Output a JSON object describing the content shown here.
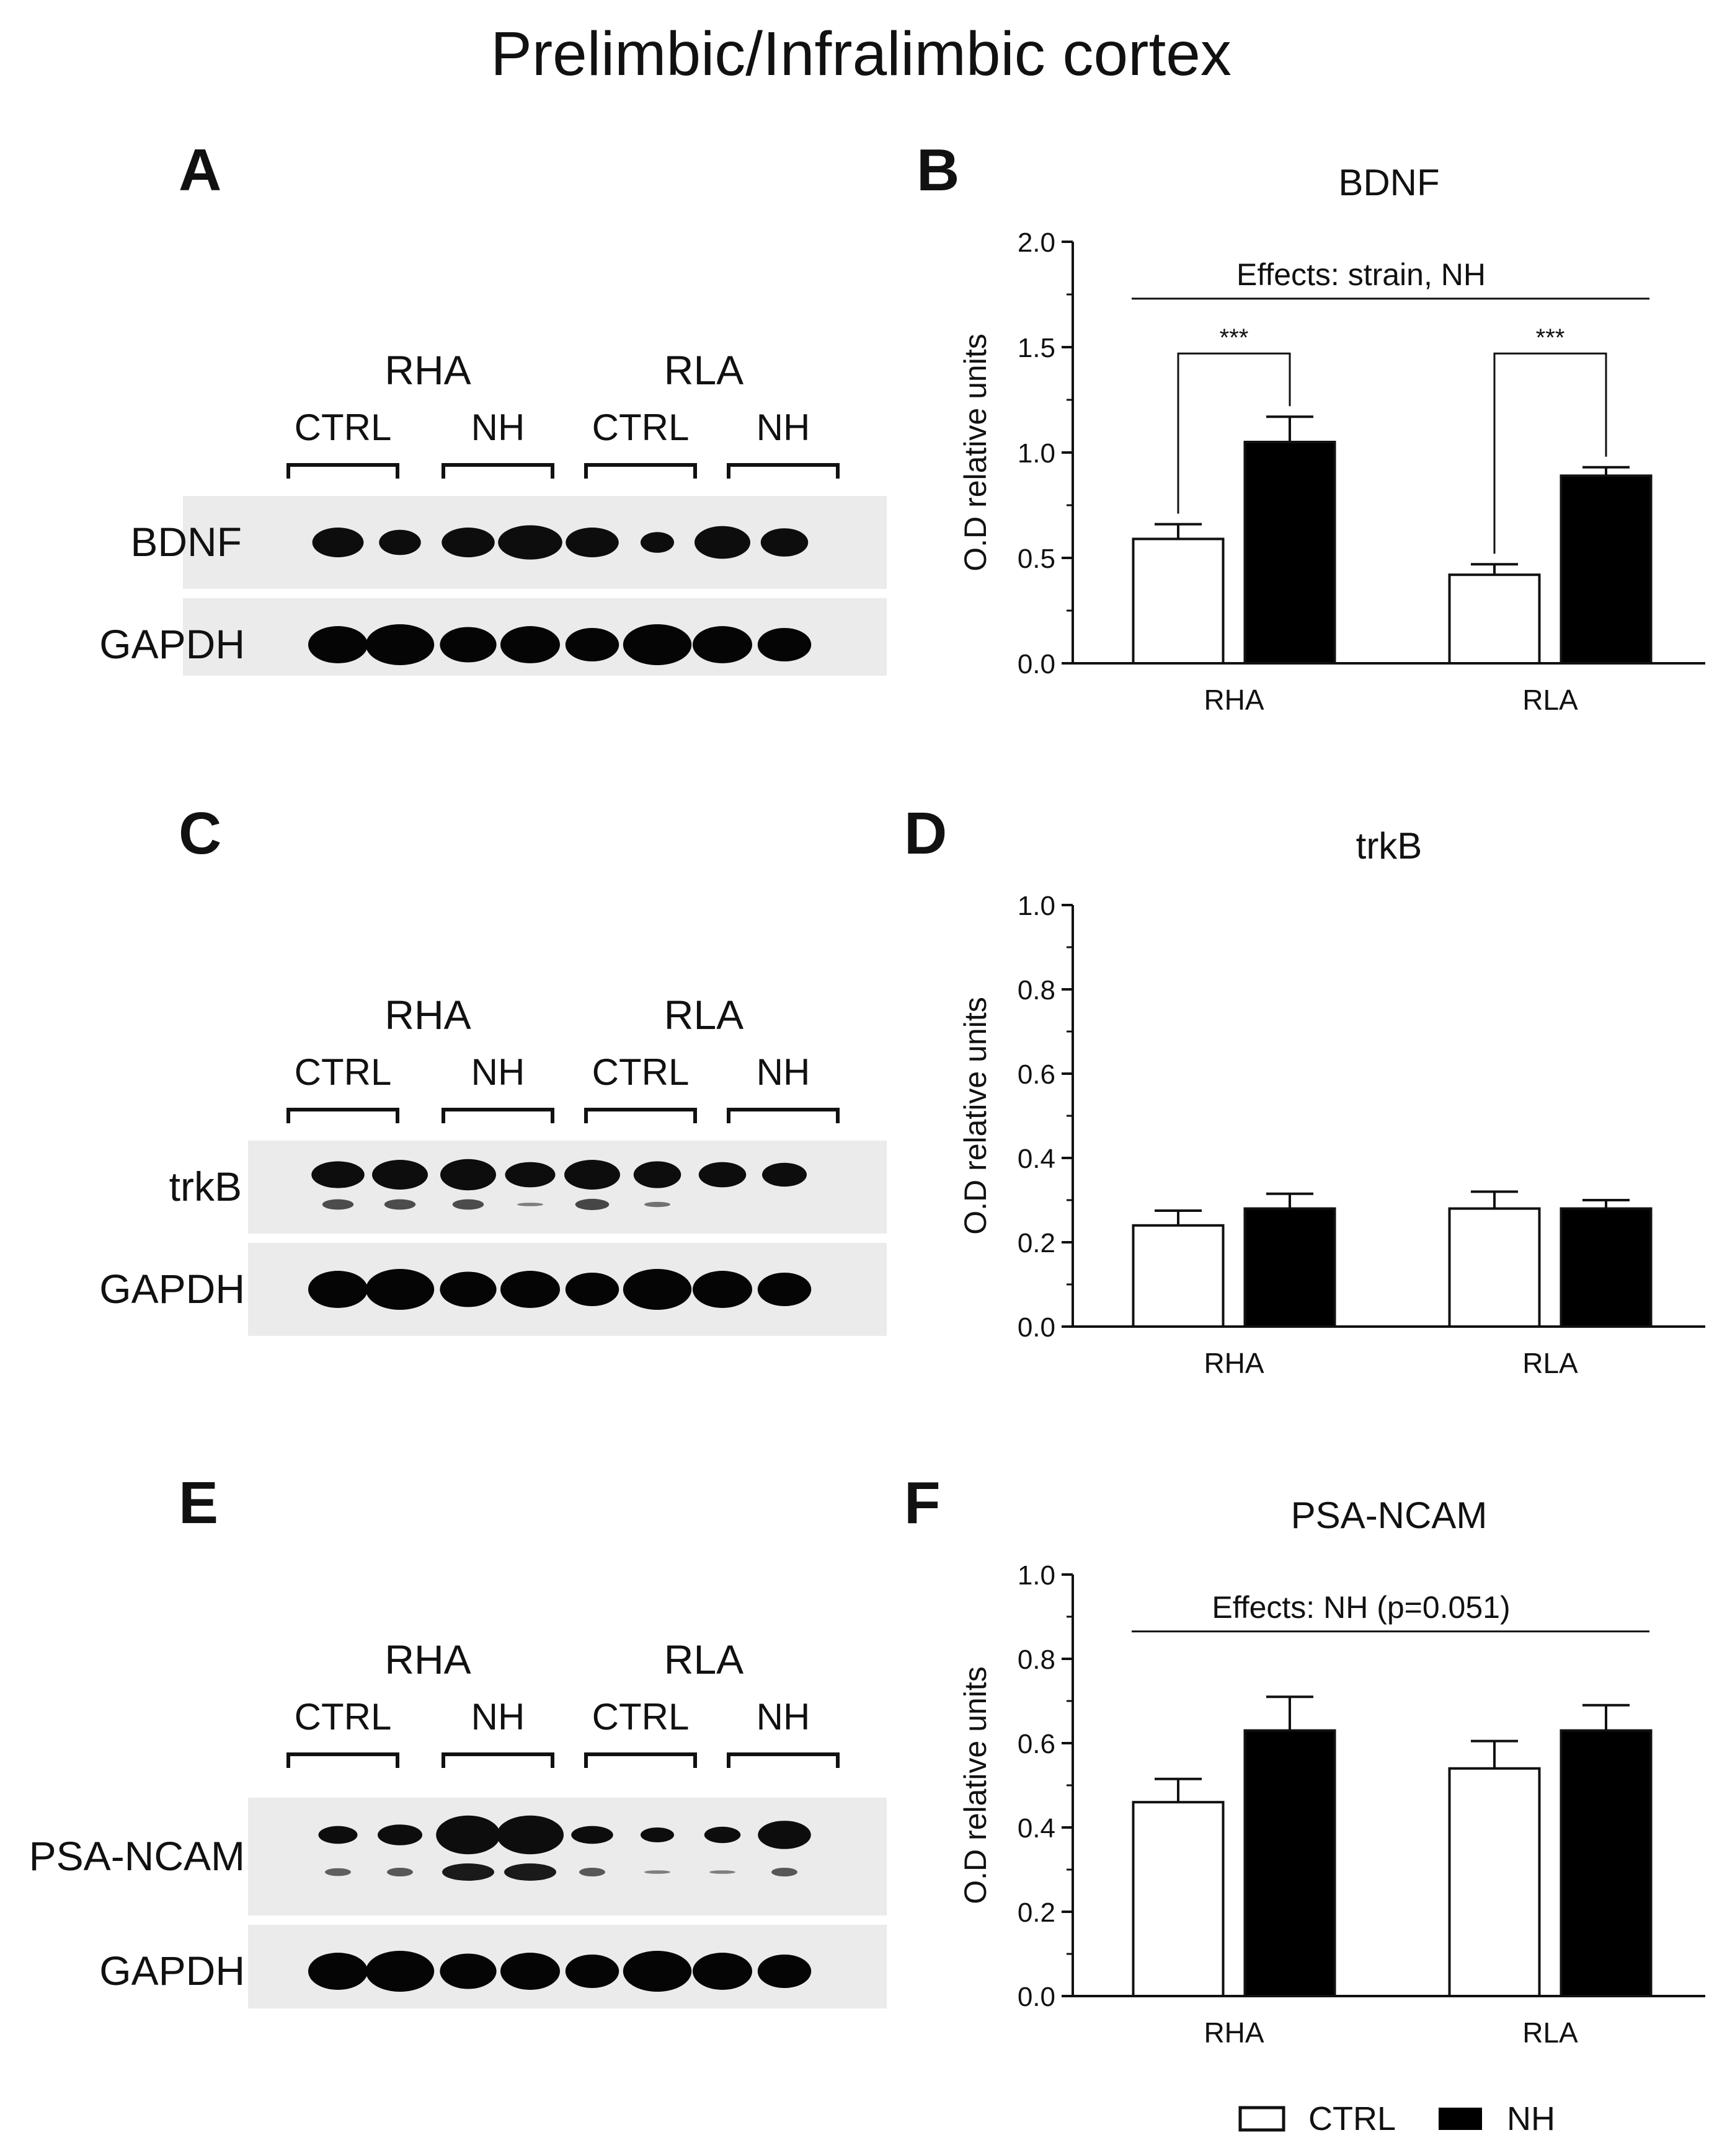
{
  "figure_title": "Prelimbic/Infralimbic cortex",
  "panel_labels": {
    "A": "A",
    "B": "B",
    "C": "C",
    "D": "D",
    "E": "E",
    "F": "F"
  },
  "blots": [
    {
      "strains": [
        "RHA",
        "RLA"
      ],
      "groups": [
        "CTRL",
        "NH",
        "CTRL",
        "NH"
      ],
      "protein": "BDNF",
      "loading": "GAPDH"
    },
    {
      "strains": [
        "RHA",
        "RLA"
      ],
      "groups": [
        "CTRL",
        "NH",
        "CTRL",
        "NH"
      ],
      "protein": "trkB",
      "loading": "GAPDH"
    },
    {
      "strains": [
        "RHA",
        "RLA"
      ],
      "groups": [
        "CTRL",
        "NH",
        "CTRL",
        "NH"
      ],
      "protein": "PSA-NCAM",
      "loading": "GAPDH"
    }
  ],
  "legend": {
    "ctrl": "CTRL",
    "nh": "NH"
  },
  "colors": {
    "ctrl_fill": "#ffffff",
    "nh_fill": "#000000",
    "axis": "#111111"
  },
  "chart_data": [
    {
      "type": "bar",
      "title": "BDNF",
      "ylabel": "O.D relative units",
      "categories": [
        "RHA",
        "RLA"
      ],
      "series": [
        {
          "name": "CTRL",
          "values": [
            0.59,
            0.42
          ],
          "errors": [
            0.07,
            0.05
          ]
        },
        {
          "name": "NH",
          "values": [
            1.05,
            0.89
          ],
          "errors": [
            0.12,
            0.04
          ]
        }
      ],
      "ylim": [
        0,
        2.0
      ],
      "ticks": [
        "0.0",
        "0.5",
        "1.0",
        "1.5",
        "2.0"
      ],
      "effects_note": "Effects: strain, NH",
      "significance": [
        "***",
        "***"
      ]
    },
    {
      "type": "bar",
      "title": "trkB",
      "ylabel": "O.D relative units",
      "categories": [
        "RHA",
        "RLA"
      ],
      "series": [
        {
          "name": "CTRL",
          "values": [
            0.24,
            0.28
          ],
          "errors": [
            0.035,
            0.04
          ]
        },
        {
          "name": "NH",
          "values": [
            0.28,
            0.28
          ],
          "errors": [
            0.035,
            0.02
          ]
        }
      ],
      "ylim": [
        0,
        1.0
      ],
      "ticks": [
        "0.0",
        "0.2",
        "0.4",
        "0.6",
        "0.8",
        "1.0"
      ],
      "effects_note": "",
      "significance": []
    },
    {
      "type": "bar",
      "title": "PSA-NCAM",
      "ylabel": "O.D relative units",
      "categories": [
        "RHA",
        "RLA"
      ],
      "series": [
        {
          "name": "CTRL",
          "values": [
            0.46,
            0.54
          ],
          "errors": [
            0.055,
            0.065
          ]
        },
        {
          "name": "NH",
          "values": [
            0.63,
            0.63
          ],
          "errors": [
            0.08,
            0.06
          ]
        }
      ],
      "ylim": [
        0,
        1.0
      ],
      "ticks": [
        "0.0",
        "0.2",
        "0.4",
        "0.6",
        "0.8",
        "1.0"
      ],
      "effects_note": "Effects: NH (p=0.051)",
      "significance": []
    }
  ]
}
